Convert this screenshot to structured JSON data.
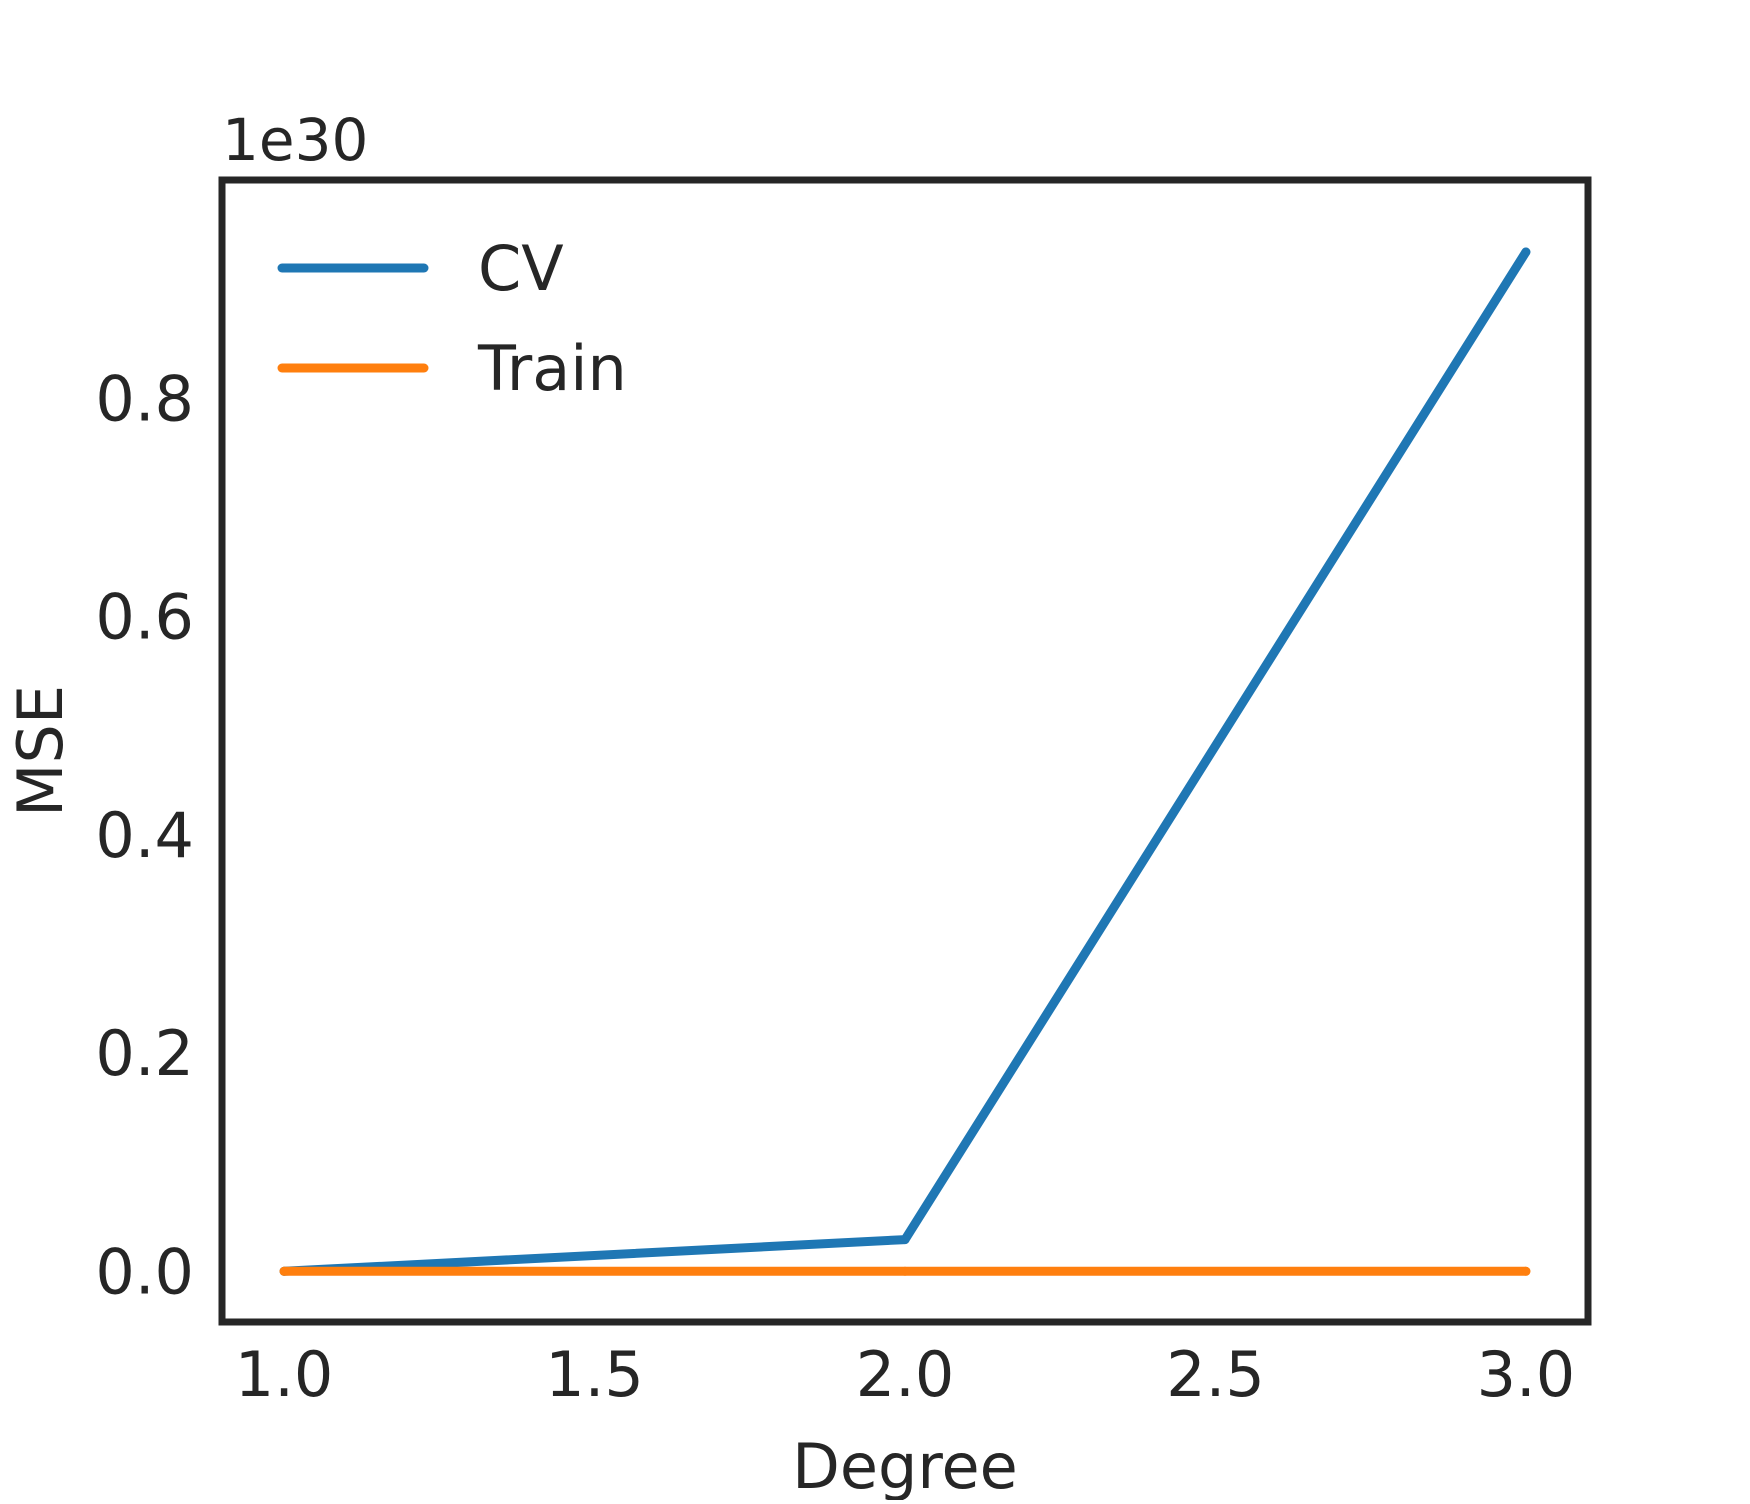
{
  "chart_data": {
    "type": "line",
    "title": "",
    "xlabel": "Degree",
    "ylabel": "MSE",
    "y_offset_label": "1e30",
    "x": [
      1.0,
      2.0,
      3.0
    ],
    "xlim": [
      0.9,
      3.1
    ],
    "ylim": [
      -0.0465,
      1.0
    ],
    "xticks": [
      1.0,
      1.5,
      2.0,
      2.5,
      3.0
    ],
    "xtick_labels": [
      "1.0",
      "1.5",
      "2.0",
      "2.5",
      "3.0"
    ],
    "yticks": [
      0.0,
      0.2,
      0.4,
      0.6,
      0.8
    ],
    "ytick_labels": [
      "0.0",
      "0.2",
      "0.4",
      "0.6",
      "0.8"
    ],
    "grid": false,
    "legend_position": "top-left",
    "series": [
      {
        "name": "CV",
        "color": "#1f77b4",
        "values": [
          0.0,
          0.029,
          0.934
        ]
      },
      {
        "name": "Train",
        "color": "#ff7f0e",
        "values": [
          0.0,
          0.0,
          0.0
        ]
      }
    ]
  }
}
